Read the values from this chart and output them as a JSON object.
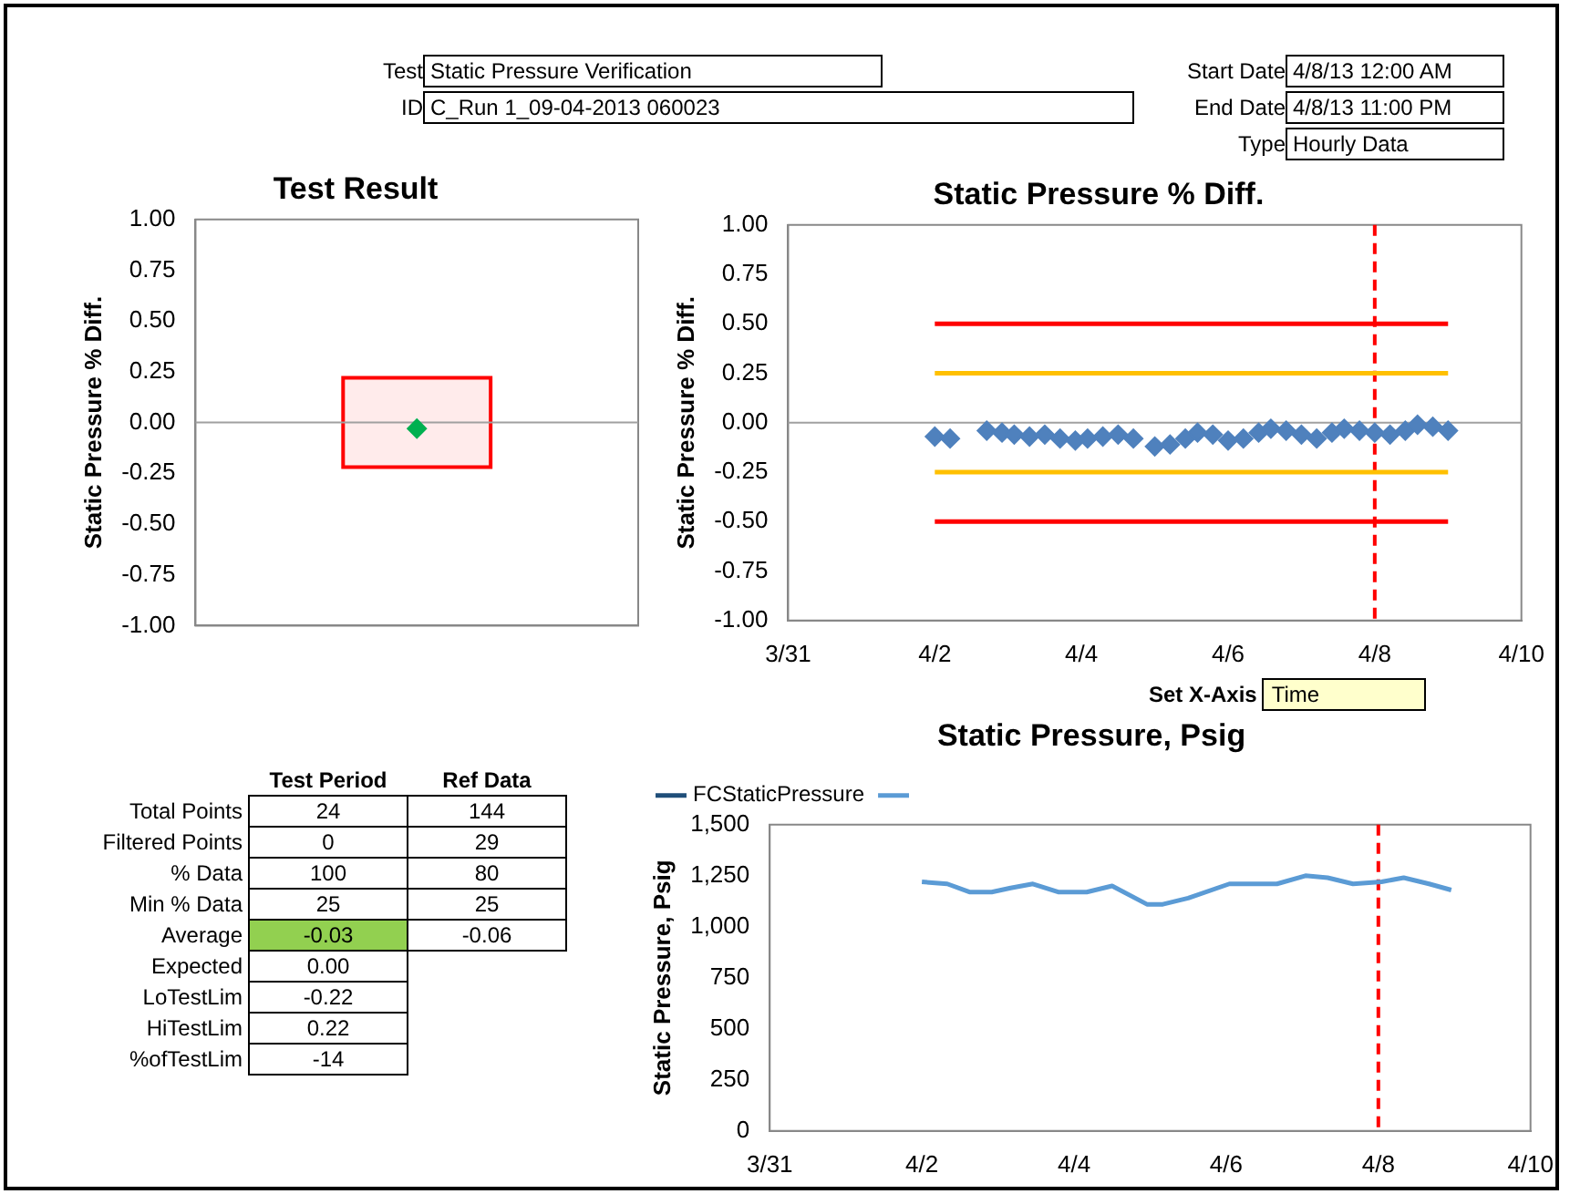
{
  "chart_data": [
    {
      "type": "other",
      "annotations": [
        "Test",
        "Static Pressure Verification",
        "ID",
        "C_Run 1_09-04-2013 060023",
        "Start Date",
        "4/8/13 12:00 AM",
        "End Date",
        "4/8/13 11:00 PM",
        "Type",
        "Hourly Data"
      ]
    },
    {
      "type": "scatter",
      "title": "Test Result",
      "ylabel": "Static Pressure % Diff.",
      "categories": [
        null
      ],
      "tick_labels": "y",
      "grid": false,
      "legend": false,
      "marker": "diamond",
      "series": [
        {
          "color": "#00b050",
          "values": [
            -0.03
          ]
        }
      ],
      "ylim": [
        -1,
        1
      ],
      "yticks": [
        {
          "value": 1,
          "label": "1.00"
        },
        {
          "value": 0.75,
          "label": "0.75"
        },
        {
          "value": 0.5,
          "label": "0.50"
        },
        {
          "value": 0.25,
          "label": "0.25"
        },
        {
          "value": 0,
          "label": "0.00"
        },
        {
          "value": -0.25,
          "label": "-0.25"
        },
        {
          "value": -0.5,
          "label": "-0.50"
        },
        {
          "value": -0.75,
          "label": "-0.75"
        },
        {
          "value": -1,
          "label": "-1.00"
        }
      ],
      "bands": [
        {
          "axis": "y",
          "from": -0.22,
          "to": 0.22,
          "color": "#ff0000"
        }
      ],
      "ref_lines": [
        {
          "axis": "y",
          "value": 0,
          "color": "#a0a0a0",
          "line_style": "solid"
        }
      ]
    },
    {
      "type": "scatter",
      "title": "Static Pressure % Diff.",
      "ylabel": "Static Pressure % Diff.",
      "grid": false,
      "legend": false,
      "marker": "diamond",
      "series": [
        {
          "type": "scatter",
          "color": "#4f81bd",
          "x": [
            "2013-04-02T00:00",
            "2013-04-02T05:00",
            "2013-04-02T17:00",
            "2013-04-02T22:00",
            "2013-04-03T02:00",
            "2013-04-03T07:00",
            "2013-04-03T12:00",
            "2013-04-03T17:00",
            "2013-04-03T22:00",
            "2013-04-04T02:00",
            "2013-04-04T07:00",
            "2013-04-04T12:00",
            "2013-04-04T17:00",
            "2013-04-05T00:00",
            "2013-04-05T05:00",
            "2013-04-05T10:00",
            "2013-04-05T14:00",
            "2013-04-05T19:00",
            "2013-04-06T00:00",
            "2013-04-06T05:00",
            "2013-04-06T10:00",
            "2013-04-06T14:00",
            "2013-04-06T19:00",
            "2013-04-07T00:00",
            "2013-04-07T05:00",
            "2013-04-07T10:00",
            "2013-04-07T14:00",
            "2013-04-07T19:00",
            "2013-04-08T00:00",
            "2013-04-08T05:00",
            "2013-04-08T10:00",
            "2013-04-08T14:00",
            "2013-04-08T19:00",
            "2013-04-09T00:00"
          ],
          "values": [
            -0.07,
            -0.08,
            -0.04,
            -0.05,
            -0.06,
            -0.07,
            -0.06,
            -0.08,
            -0.09,
            -0.08,
            -0.07,
            -0.06,
            -0.08,
            -0.12,
            -0.11,
            -0.08,
            -0.05,
            -0.06,
            -0.09,
            -0.08,
            -0.05,
            -0.03,
            -0.04,
            -0.06,
            -0.08,
            -0.05,
            -0.03,
            -0.04,
            -0.05,
            -0.06,
            -0.04,
            -0.01,
            -0.02,
            -0.04
          ]
        },
        {
          "type": "line",
          "marker": "none",
          "color": "#ff0000",
          "x": [
            "2013-04-02",
            "2013-04-09"
          ],
          "values": [
            0.5,
            0.5
          ]
        },
        {
          "type": "line",
          "marker": "none",
          "color": "#ffc000",
          "x": [
            "2013-04-02",
            "2013-04-09"
          ],
          "values": [
            0.25,
            0.25
          ]
        },
        {
          "type": "line",
          "marker": "none",
          "color": "#ffc000",
          "x": [
            "2013-04-02",
            "2013-04-09"
          ],
          "values": [
            -0.25,
            -0.25
          ]
        },
        {
          "type": "line",
          "marker": "none",
          "color": "#ff0000",
          "x": [
            "2013-04-02",
            "2013-04-09"
          ],
          "values": [
            -0.5,
            -0.5
          ]
        }
      ],
      "xlim": [
        "2013-03-31",
        "2013-04-10"
      ],
      "xticks": [
        {
          "value": "2013-03-31",
          "label": "3/31"
        },
        {
          "value": "2013-04-02",
          "label": "4/2"
        },
        {
          "value": "2013-04-04",
          "label": "4/4"
        },
        {
          "value": "2013-04-06",
          "label": "4/6"
        },
        {
          "value": "2013-04-08",
          "label": "4/8"
        },
        {
          "value": "2013-04-10",
          "label": "4/10"
        }
      ],
      "ylim": [
        -1,
        1
      ],
      "yticks": [
        {
          "value": 1,
          "label": "1.00"
        },
        {
          "value": 0.75,
          "label": "0.75"
        },
        {
          "value": 0.5,
          "label": "0.50"
        },
        {
          "value": 0.25,
          "label": "0.25"
        },
        {
          "value": 0,
          "label": "0.00"
        },
        {
          "value": -0.25,
          "label": "-0.25"
        },
        {
          "value": -0.5,
          "label": "-0.50"
        },
        {
          "value": -0.75,
          "label": "-0.75"
        },
        {
          "value": -1,
          "label": "-1.00"
        }
      ],
      "ref_lines": [
        {
          "axis": "y",
          "value": 0,
          "color": "#a0a0a0",
          "line_style": "solid"
        },
        {
          "axis": "x",
          "value": "2013-04-08",
          "color": "#ff0000",
          "line_style": "dashed"
        }
      ],
      "annotations": [
        "Set X-Axis",
        "Time"
      ]
    },
    {
      "type": "other",
      "categories": [
        "Total Points",
        "Filtered Points",
        "% Data",
        "Min % Data",
        "Average",
        "Expected",
        "LoTestLim",
        "HiTestLim",
        "%ofTestLim"
      ],
      "series": [
        {
          "name": "Test Period",
          "values": [
            24,
            0,
            100,
            25,
            -0.03,
            0,
            -0.22,
            0.22,
            -14
          ],
          "value_labels": [
            "24",
            "0",
            "100",
            "25",
            "-0.03",
            "0.00",
            "-0.22",
            "0.22",
            "-14"
          ],
          "colors": [
            null,
            null,
            null,
            null,
            "#92d050",
            null,
            null,
            null,
            null
          ]
        },
        {
          "name": "Ref Data",
          "values": [
            144,
            29,
            80,
            25,
            -0.06,
            null,
            null,
            null,
            null
          ],
          "value_labels": [
            "144",
            "29",
            "80",
            "25",
            "-0.06",
            null,
            null,
            null,
            null
          ]
        }
      ]
    },
    {
      "type": "line",
      "title": "Static Pressure, Psig",
      "ylabel": "Static Pressure, Psig",
      "grid": false,
      "legend": "top",
      "marker": "none",
      "series": [
        {
          "name": "FCStaticPressure",
          "color": "#1f4e79"
        },
        {
          "color": "#5b9bd5",
          "x": [
            "2013-04-02T00:00",
            "2013-04-02T08:00",
            "2013-04-02T15:00",
            "2013-04-02T22:00",
            "2013-04-03T04:00",
            "2013-04-03T11:00",
            "2013-04-03T19:00",
            "2013-04-04T04:00",
            "2013-04-04T12:00",
            "2013-04-04T23:00",
            "2013-04-05T04:00",
            "2013-04-05T12:00",
            "2013-04-06T01:00",
            "2013-04-06T16:00",
            "2013-04-07T01:00",
            "2013-04-07T08:00",
            "2013-04-07T16:00",
            "2013-04-08T01:00",
            "2013-04-08T08:00",
            "2013-04-08T16:00",
            "2013-04-08T23:00"
          ],
          "values": [
            1220,
            1210,
            1170,
            1170,
            1190,
            1210,
            1170,
            1170,
            1200,
            1110,
            1110,
            1140,
            1210,
            1210,
            1250,
            1240,
            1210,
            1220,
            1240,
            1210,
            1180
          ]
        }
      ],
      "xlim": [
        "2013-03-31",
        "2013-04-10"
      ],
      "xticks": [
        {
          "value": "2013-03-31",
          "label": "3/31"
        },
        {
          "value": "2013-04-02",
          "label": "4/2"
        },
        {
          "value": "2013-04-04",
          "label": "4/4"
        },
        {
          "value": "2013-04-06",
          "label": "4/6"
        },
        {
          "value": "2013-04-08",
          "label": "4/8"
        },
        {
          "value": "2013-04-10",
          "label": "4/10"
        }
      ],
      "ylim": [
        0,
        1500
      ],
      "yticks": [
        0,
        250,
        500,
        750,
        {
          "value": 1000,
          "label": "1,000"
        },
        {
          "value": 1250,
          "label": "1,250"
        },
        {
          "value": 1500,
          "label": "1,500"
        }
      ],
      "ref_lines": [
        {
          "axis": "x",
          "value": "2013-04-08",
          "color": "#ff0000",
          "line_style": "dashed"
        }
      ]
    }
  ]
}
